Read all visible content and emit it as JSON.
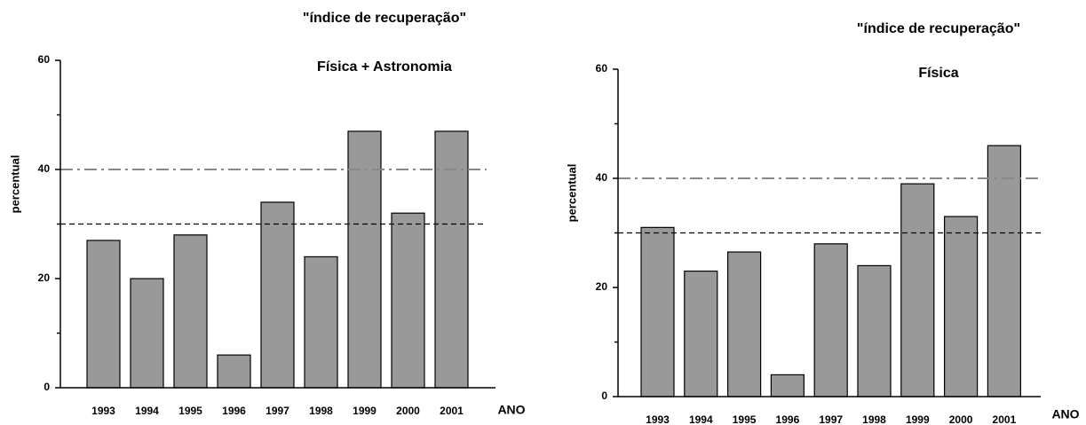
{
  "chart_data": [
    {
      "type": "bar",
      "title": "\"índice de recuperação\"",
      "subtitle": "Física + Astronomia",
      "categories": [
        "1993",
        "1994",
        "1995",
        "1996",
        "1997",
        "1998",
        "1999",
        "2000",
        "2001"
      ],
      "values": [
        27,
        20,
        28,
        6,
        34,
        24,
        47,
        32,
        47
      ],
      "color": "#999999",
      "ylabel": "percentual",
      "xlabel": "ANO",
      "ylim": [
        0,
        60
      ],
      "yticks": [
        0,
        20,
        40,
        60
      ],
      "minor_yticks": [
        10,
        30,
        50
      ],
      "reference_lines": [
        {
          "value": 40,
          "style": "dash-dot",
          "color": "#888888"
        },
        {
          "value": 30,
          "style": "dashed",
          "color": "#000000"
        }
      ]
    },
    {
      "type": "bar",
      "title": "\"índice de recuperação\"",
      "subtitle": "Física",
      "categories": [
        "1993",
        "1994",
        "1995",
        "1996",
        "1997",
        "1998",
        "1999",
        "2000",
        "2001"
      ],
      "values": [
        31,
        23,
        26.5,
        4,
        28,
        24,
        39,
        33,
        46
      ],
      "color": "#999999",
      "ylabel": "percentual",
      "xlabel": "ANO",
      "ylim": [
        0,
        60
      ],
      "yticks": [
        0,
        20,
        40,
        60
      ],
      "minor_yticks": [
        10,
        30,
        50
      ],
      "reference_lines": [
        {
          "value": 40,
          "style": "dash-dot",
          "color": "#888888"
        },
        {
          "value": 30,
          "style": "dashed",
          "color": "#000000"
        }
      ]
    }
  ]
}
